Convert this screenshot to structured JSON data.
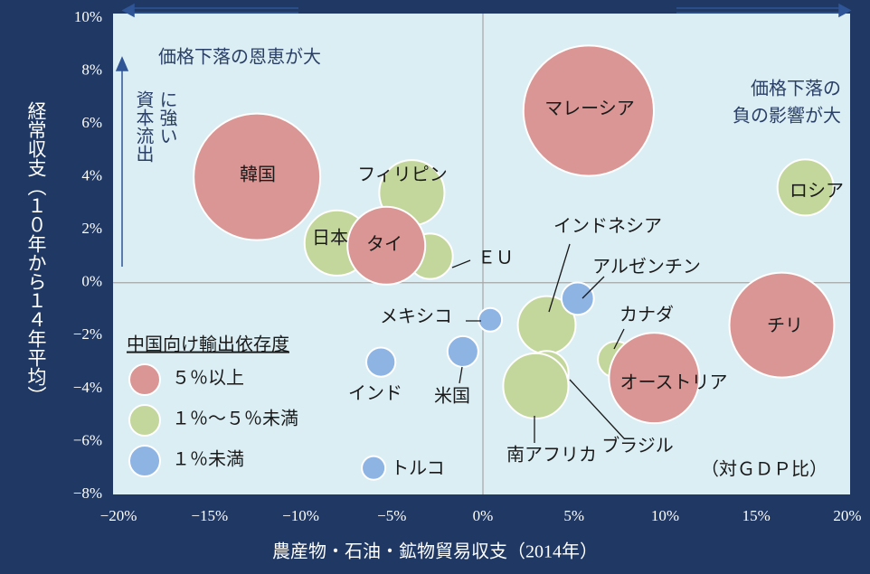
{
  "chart_data": {
    "type": "bubble",
    "xlabel": "農産物・石油・鉱物貿易収支（2014年）",
    "ylabel": "経常収支（１０年から１４年平均）",
    "legend_title": "中国向け輸出依存度",
    "note": "（対ＧＤＰ比）",
    "annotations": [
      {
        "lines": [
          "価格下落の恩恵が大"
        ]
      },
      {
        "lines": [
          "価格下落の",
          "負の影響が大"
        ]
      },
      {
        "lines": [
          "資本流出",
          "に強い"
        ]
      }
    ],
    "xlim": [
      -20,
      20
    ],
    "xticks": [
      {
        "value": -20,
        "label": "−20%"
      },
      {
        "value": -15,
        "label": "−15%"
      },
      {
        "value": -10,
        "label": "−10%"
      },
      {
        "value": -5,
        "label": "−5%"
      },
      {
        "value": 0,
        "label": "0%"
      },
      {
        "value": 5,
        "label": "5%"
      },
      {
        "value": 10,
        "label": "10%"
      },
      {
        "value": 15,
        "label": "15%"
      },
      {
        "value": 20,
        "label": "20%"
      }
    ],
    "ylim": [
      -8,
      10
    ],
    "yticks": [
      {
        "value": -8,
        "label": "−8%"
      },
      {
        "value": -6,
        "label": "−6%"
      },
      {
        "value": -4,
        "label": "−4%"
      },
      {
        "value": -2,
        "label": "−2%"
      },
      {
        "value": 0,
        "label": "0%"
      },
      {
        "value": 2,
        "label": "2%"
      },
      {
        "value": 4,
        "label": "4%"
      },
      {
        "value": 6,
        "label": "6%"
      },
      {
        "value": 8,
        "label": "8%"
      },
      {
        "value": 10,
        "label": "10%"
      }
    ],
    "series": [
      {
        "name": "５％以上",
        "color": "#d99694",
        "labels": [
          "韓国",
          "マレーシア",
          "タイ",
          "チリ",
          "オーストリア"
        ],
        "x": [
          -12.4,
          5.8,
          -5.3,
          16.4,
          9.4
        ],
        "values": [
          4.0,
          6.5,
          1.4,
          -1.6,
          -3.6
        ],
        "sizes": [
          49,
          52,
          18.5,
          33.6,
          25
        ]
      },
      {
        "name": "１％～５％未満",
        "color": "#c3d69b",
        "labels": [
          "フィリピン",
          "日本",
          "ＥＵ",
          "ロシア",
          "インドネシア",
          "カナダ",
          "ブラジル",
          "南アフリカ"
        ],
        "x": [
          -3.9,
          -8.0,
          -2.9,
          17.7,
          3.5,
          7.3,
          3.5,
          2.9
        ],
        "values": [
          3.4,
          1.5,
          1.0,
          3.6,
          -1.6,
          -2.9,
          -3.4,
          -3.9
        ],
        "sizes": [
          13,
          13,
          6.3,
          9.6,
          10.2,
          4,
          5.8,
          13
        ]
      },
      {
        "name": "１％未満",
        "color": "#8eb4e3",
        "labels": [
          "アルゼンチン",
          "メキシコ",
          "米国",
          "インド",
          "トルコ"
        ],
        "x": [
          5.2,
          0.4,
          -1.1,
          -5.6,
          -6.0
        ],
        "values": [
          -0.6,
          -1.4,
          -2.6,
          -3.0,
          -7.0
        ],
        "sizes": [
          3.2,
          1.7,
          2.9,
          2.6,
          1.7
        ]
      }
    ]
  }
}
